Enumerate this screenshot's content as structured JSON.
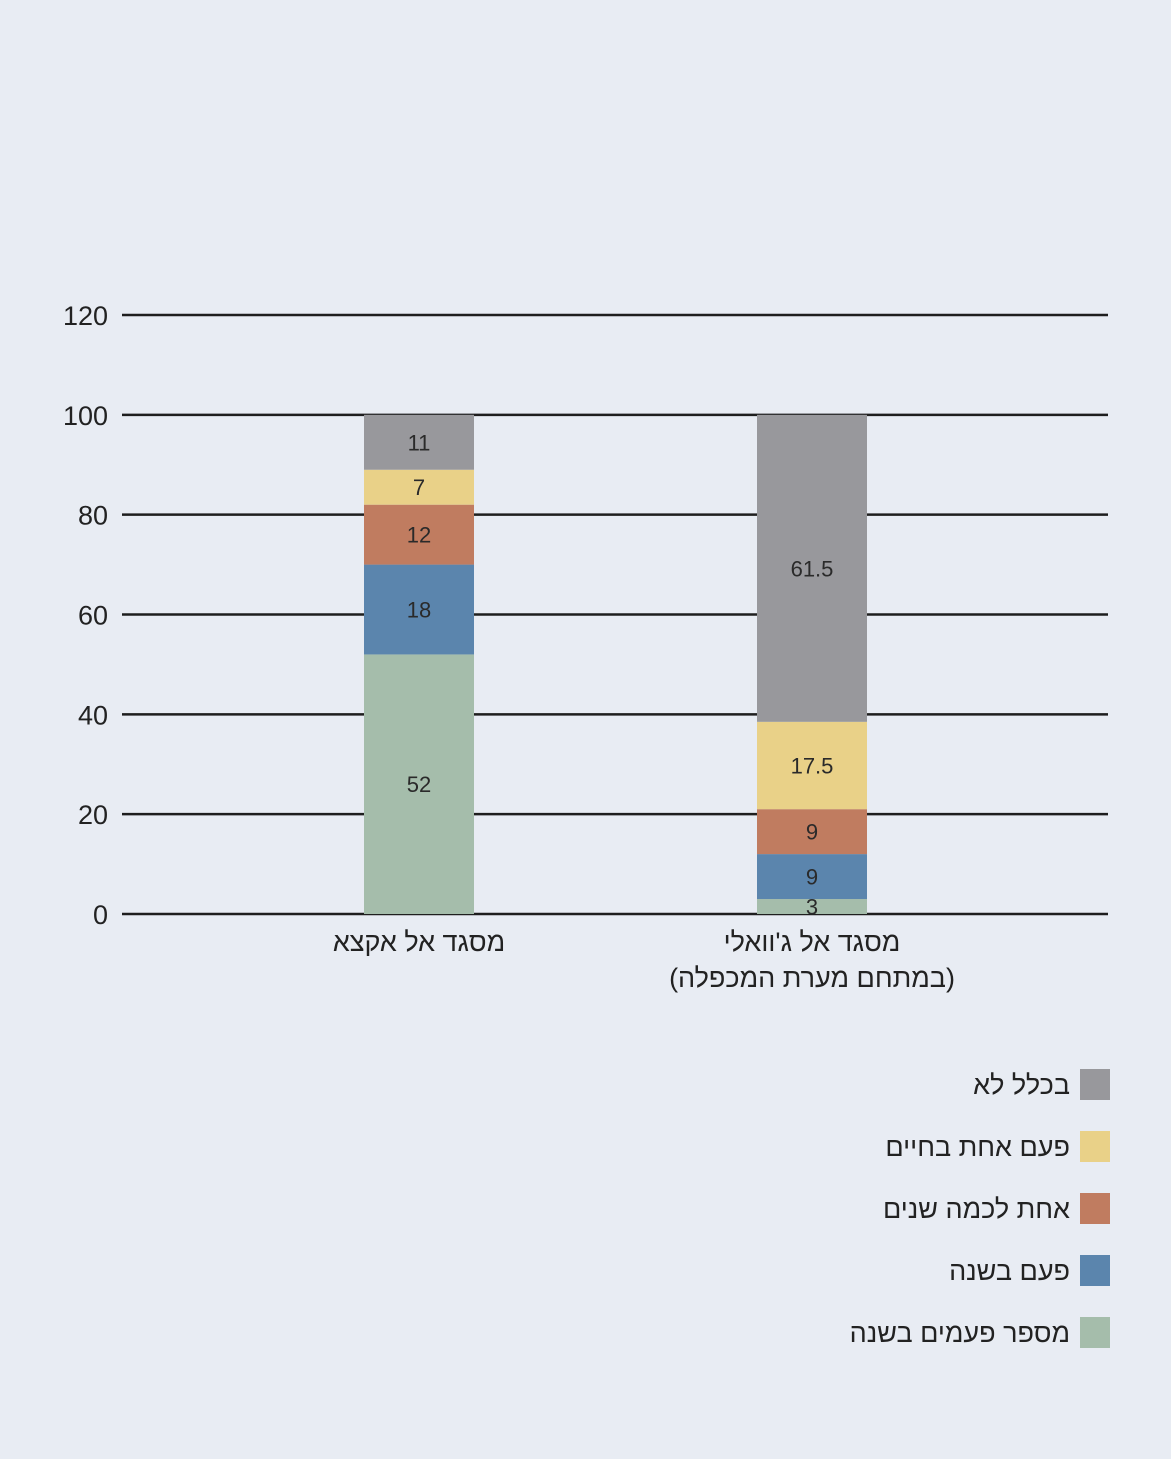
{
  "chart_data": {
    "type": "bar",
    "stacked": true,
    "categories": [
      [
        "מסגד אל אקצא"
      ],
      [
        "מסגד אל ג'וואלי",
        "(במתחם מערת המכפלה)"
      ]
    ],
    "series": [
      {
        "name": "מספר פעמים בשנה",
        "color": "#a5bdab",
        "values": [
          52,
          3
        ]
      },
      {
        "name": "פעם בשנה",
        "color": "#5b85ad",
        "values": [
          18,
          9
        ]
      },
      {
        "name": "אחת לכמה שנים",
        "color": "#c07c60",
        "values": [
          12,
          9
        ]
      },
      {
        "name": "פעם אחת בחיים",
        "color": "#e9d188",
        "values": [
          7,
          17.5
        ]
      },
      {
        "name": "בכלל לא",
        "color": "#98989c",
        "values": [
          11,
          61.5
        ]
      }
    ],
    "ylim": [
      0,
      120
    ],
    "yticks": [
      0,
      20,
      40,
      60,
      80,
      100,
      120
    ],
    "grid": true,
    "legend_placement": "bottom-right",
    "title": "",
    "xlabel": "",
    "ylabel": ""
  }
}
